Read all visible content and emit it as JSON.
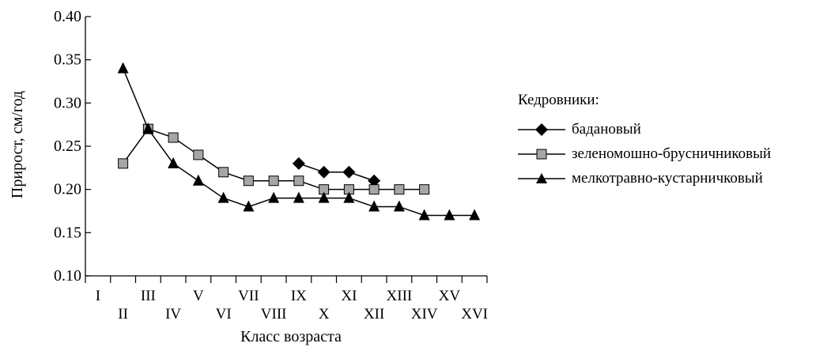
{
  "chart_data": {
    "type": "line",
    "xlabel": "Класс возраста",
    "ylabel": "Прирост, см/год",
    "ylim": [
      0.1,
      0.4
    ],
    "yticks": [
      "0.10",
      "0.15",
      "0.20",
      "0.25",
      "0.30",
      "0.35",
      "0.40"
    ],
    "categories": [
      "I",
      "II",
      "III",
      "IV",
      "V",
      "VI",
      "VII",
      "VIII",
      "IX",
      "X",
      "XI",
      "XII",
      "XIII",
      "XIV",
      "XV",
      "XVI"
    ],
    "grid": false,
    "legend_position": "right",
    "legend_title": "Кедровники:",
    "series": [
      {
        "name": "бадановый",
        "marker": "diamond",
        "color": "#000000",
        "values": [
          null,
          null,
          null,
          null,
          null,
          null,
          null,
          null,
          0.23,
          0.22,
          0.22,
          0.21,
          null,
          null,
          null,
          null
        ]
      },
      {
        "name": "зеленомошно-брусничниковый",
        "marker": "square",
        "color": "#a6a6a6",
        "values": [
          null,
          0.23,
          0.27,
          0.26,
          0.24,
          0.22,
          0.21,
          0.21,
          0.21,
          0.2,
          0.2,
          0.2,
          0.2,
          0.2,
          null,
          null
        ]
      },
      {
        "name": "мелкотравно-кустарничковый",
        "marker": "triangle",
        "color": "#000000",
        "values": [
          null,
          0.34,
          0.27,
          0.23,
          0.21,
          0.19,
          0.18,
          0.19,
          0.19,
          0.19,
          0.19,
          0.18,
          0.18,
          0.17,
          0.17,
          0.17
        ]
      }
    ]
  }
}
